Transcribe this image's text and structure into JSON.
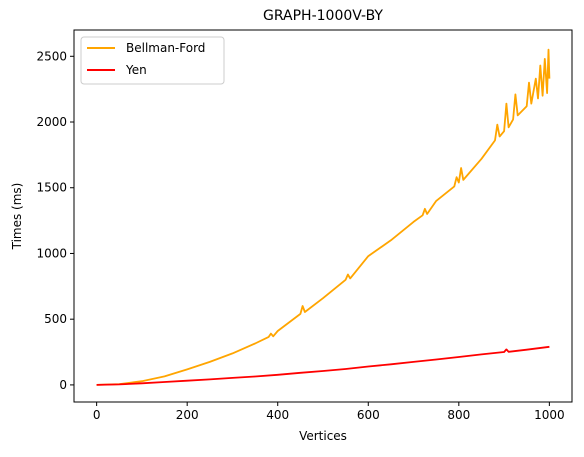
{
  "chart_data": {
    "type": "line",
    "title": "GRAPH-1000V-BY",
    "xlabel": "Vertices",
    "ylabel": "Times (ms)",
    "xlim": [
      -50,
      1050
    ],
    "ylim": [
      -130,
      2700
    ],
    "xticks": [
      0,
      200,
      400,
      600,
      800,
      1000
    ],
    "xtick_labels": [
      "0",
      "200",
      "400",
      "600",
      "800",
      "1000"
    ],
    "yticks": [
      0,
      500,
      1000,
      1500,
      2000,
      2500
    ],
    "ytick_labels": [
      "0",
      "500",
      "1000",
      "1500",
      "2000",
      "2500"
    ],
    "grid": false,
    "legend_position": "top-left",
    "series": [
      {
        "name": "Bellman-Ford",
        "color": "#ffa500",
        "x": [
          0,
          50,
          100,
          150,
          200,
          250,
          300,
          350,
          380,
          385,
          390,
          400,
          450,
          455,
          460,
          500,
          550,
          555,
          560,
          600,
          650,
          700,
          720,
          725,
          730,
          750,
          790,
          795,
          800,
          805,
          810,
          850,
          880,
          885,
          890,
          900,
          905,
          910,
          920,
          925,
          930,
          950,
          955,
          960,
          970,
          975,
          980,
          985,
          990,
          995,
          998,
          1000
        ],
        "y": [
          0,
          6,
          28,
          65,
          118,
          175,
          240,
          315,
          365,
          390,
          370,
          410,
          540,
          600,
          555,
          660,
          800,
          840,
          810,
          980,
          1100,
          1240,
          1290,
          1340,
          1300,
          1400,
          1510,
          1580,
          1540,
          1650,
          1560,
          1720,
          1860,
          1980,
          1890,
          1930,
          2140,
          1960,
          2020,
          2210,
          2050,
          2120,
          2300,
          2140,
          2330,
          2180,
          2430,
          2200,
          2480,
          2220,
          2550,
          2330
        ]
      },
      {
        "name": "Yen",
        "color": "#ff0000",
        "x": [
          0,
          50,
          100,
          150,
          200,
          250,
          300,
          350,
          400,
          450,
          500,
          550,
          600,
          650,
          700,
          750,
          800,
          850,
          900,
          905,
          910,
          950,
          1000
        ],
        "y": [
          0,
          4,
          12,
          22,
          32,
          42,
          53,
          64,
          77,
          92,
          106,
          121,
          140,
          157,
          175,
          193,
          212,
          232,
          250,
          270,
          252,
          268,
          290
        ]
      }
    ]
  }
}
